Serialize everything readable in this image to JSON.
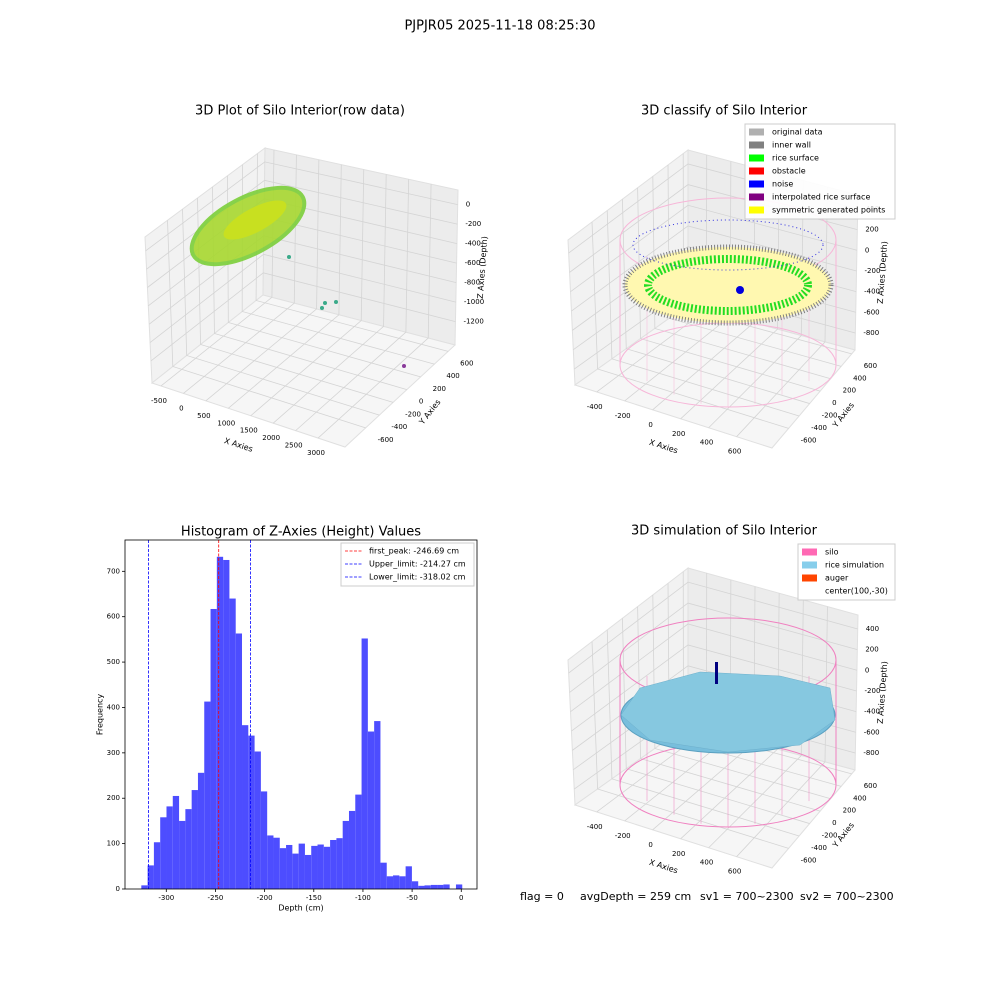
{
  "title": "PJPJR05 2025-11-18 08:25:30",
  "chart_data": [
    {
      "type": "scatter3d",
      "title": "3D Plot of Silo Interior(row data)",
      "xlabel": "X Axies",
      "ylabel": "Y Axies",
      "zlabel": "Z Axies (Depth)",
      "xlim": [
        -700,
        3600
      ],
      "xticks": [
        -500,
        0,
        500,
        1000,
        1500,
        2000,
        2500,
        3000
      ],
      "ylim": [
        -900,
        700
      ],
      "yticks": [
        -600,
        -400,
        -200,
        0,
        200,
        400,
        600
      ],
      "zlim": [
        -1440,
        150
      ],
      "zticks": [
        0,
        -200,
        -400,
        -600,
        -800,
        -1000,
        -1200
      ]
    },
    {
      "type": "scatter3d",
      "title": "3D classify of Silo Interior",
      "xlabel": "X Axies",
      "ylabel": "Y Axies",
      "zlabel": "Z Axies (Depth)",
      "xlim": [
        -555,
        853
      ],
      "xticks": [
        -400,
        -200,
        0,
        200,
        400,
        600
      ],
      "ylim": [
        -916,
        663
      ],
      "yticks": [
        -600,
        -400,
        -200,
        0,
        200,
        400,
        600
      ],
      "zlim": [
        -965,
        535
      ],
      "zticks": [
        400,
        200,
        0,
        -200,
        -400,
        -600,
        -800
      ],
      "legend": [
        {
          "name": "original data",
          "color": "#b0b0b0"
        },
        {
          "name": "inner wall",
          "color": "#808080"
        },
        {
          "name": "rice surface",
          "color": "#00ff00"
        },
        {
          "name": "obstacle",
          "color": "#ff0000"
        },
        {
          "name": "noise",
          "color": "#0000ff"
        },
        {
          "name": "interpolated rice surface",
          "color": "#800080"
        },
        {
          "name": "symmetric generated points",
          "color": "#ffff00"
        }
      ]
    },
    {
      "type": "histogram",
      "title": "Histogram of Z-Axies (Height) Values",
      "xlabel": "Depth (cm)",
      "ylabel": "Frequency",
      "color": "#4d4dff",
      "xlim": [
        -342,
        16
      ],
      "xticks": [
        -300,
        -250,
        -200,
        -150,
        -100,
        -50,
        0
      ],
      "ylim": [
        0,
        769
      ],
      "yticks": [
        0,
        100,
        200,
        300,
        400,
        500,
        600,
        700
      ],
      "bins": [
        -325.4,
        -319.0,
        -312.6,
        -306.2,
        -299.8,
        -293.4,
        -287.0,
        -280.6,
        -274.2,
        -267.8,
        -261.4,
        -255.0,
        -248.6,
        -242.2,
        -235.8,
        -229.4,
        -223.0,
        -216.6,
        -210.2,
        -203.8,
        -197.4,
        -191.0,
        -184.6,
        -178.2,
        -171.8,
        -165.4,
        -159.0,
        -152.6,
        -146.2,
        -139.8,
        -133.4,
        -127.0,
        -120.6,
        -114.2,
        -107.8,
        -101.4,
        -95.0,
        -88.6,
        -82.2,
        -75.8,
        -69.4,
        -63.0,
        -56.6,
        -50.2,
        -43.8,
        -37.4,
        -31.0,
        -24.6,
        -18.2,
        -11.8,
        -5.4,
        1.0
      ],
      "counts": [
        8,
        52,
        103,
        158,
        182,
        205,
        150,
        176,
        218,
        256,
        413,
        617,
        732,
        725,
        640,
        563,
        361,
        338,
        303,
        215,
        118,
        113,
        90,
        97,
        78,
        100,
        75,
        95,
        98,
        93,
        108,
        112,
        150,
        172,
        208,
        552,
        347,
        370,
        58,
        28,
        30,
        28,
        50,
        17,
        7,
        8,
        9,
        9,
        10,
        0,
        10
      ],
      "vlines": [
        {
          "name": "first_peak: -246.69 cm",
          "value": -246.69,
          "color": "#ff0000"
        },
        {
          "name": "Upper_limit: -214.27 cm",
          "value": -214.27,
          "color": "#0000ff"
        },
        {
          "name": "Lower_limit: -318.02 cm",
          "value": -318.02,
          "color": "#0000ff"
        }
      ]
    },
    {
      "type": "surface3d",
      "title": "3D simulation of Silo Interior",
      "xlabel": "X Axies",
      "ylabel": "Y Axies",
      "zlabel": "Z Axies (Depth)",
      "xlim": [
        -555,
        853
      ],
      "xticks": [
        -400,
        -200,
        0,
        200,
        400,
        600
      ],
      "ylim": [
        -916,
        663
      ],
      "yticks": [
        -600,
        -400,
        -200,
        0,
        200,
        400,
        600
      ],
      "zlim": [
        -965,
        535
      ],
      "zticks": [
        400,
        200,
        0,
        -200,
        -400,
        -600,
        -800
      ],
      "legend": [
        {
          "name": "silo",
          "color": "#ff69b4"
        },
        {
          "name": "rice simulation",
          "color": "#87ceeb"
        },
        {
          "name": "auger",
          "color": "#ff4500"
        },
        {
          "name": "center(100,-30)"
        }
      ]
    }
  ],
  "status": [
    "flag = 0",
    "avgDepth = 259 cm",
    "sv1 = 700~2300",
    "sv2 = 700~2300"
  ]
}
